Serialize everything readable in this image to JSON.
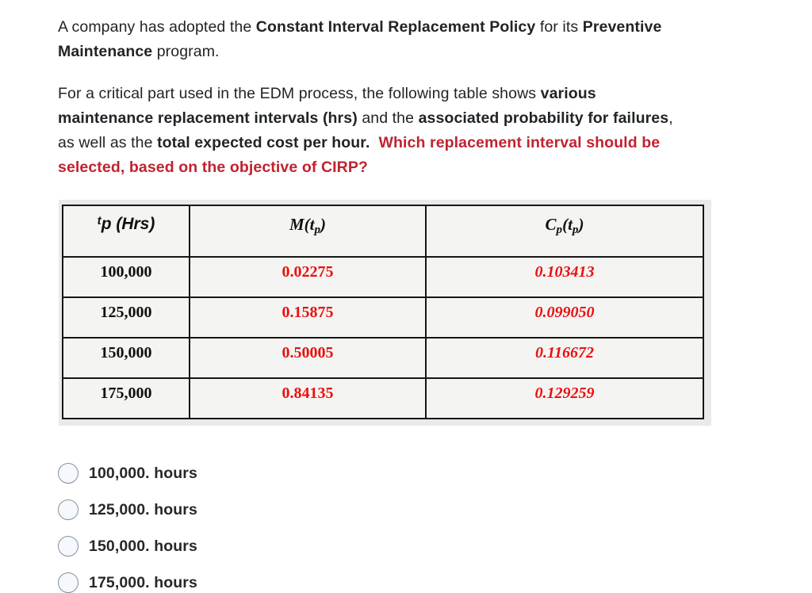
{
  "question": {
    "p1": {
      "l1": [
        {
          "t": "A company has adopted the "
        },
        {
          "t": "Constant Interval Replacement Policy"
        },
        {
          "t": " for its "
        },
        {
          "t": "Preventive"
        }
      ],
      "l2": [
        {
          "t": "Maintenance"
        },
        {
          "t": " program."
        }
      ]
    },
    "p2": {
      "l1": [
        {
          "t": "For a critical part used in the EDM process, the following table shows "
        },
        {
          "t": "various"
        }
      ],
      "l2": [
        {
          "t": "maintenance replacement intervals (hrs)"
        },
        {
          "t": " and the "
        },
        {
          "t": "associated probability for failures"
        },
        {
          "t": ","
        }
      ],
      "l3": [
        {
          "t": "as well as the "
        },
        {
          "t": "total expected cost per hour"
        },
        {
          "t": ".  "
        },
        {
          "t": "Which replacement interval should be"
        }
      ],
      "l4": [
        {
          "t": "selected, based on the objective of CIRP?"
        }
      ]
    }
  },
  "table": {
    "headers": {
      "col1": {
        "sup": "t",
        "base": "p",
        "rest": " (Hrs)"
      },
      "col2": {
        "pre": "M(t",
        "sub": "p",
        "post": ")"
      },
      "col3": {
        "pre": "C",
        "sub1": "p",
        "mid": "(t",
        "sub2": "p",
        "post": ")"
      }
    },
    "rows": [
      {
        "tp": "100,000",
        "m": "0.02275",
        "cp": "0.103413"
      },
      {
        "tp": "125,000",
        "m": "0.15875",
        "cp": "0.099050"
      },
      {
        "tp": "150,000",
        "m": "0.50005",
        "cp": "0.116672"
      },
      {
        "tp": "175,000",
        "m": "0.84135",
        "cp": "0.129259"
      }
    ]
  },
  "options": [
    {
      "label": "100,000. hours"
    },
    {
      "label": "125,000. hours"
    },
    {
      "label": "150,000. hours"
    },
    {
      "label": "175,000. hours"
    }
  ],
  "colors": {
    "question_red": "#c0232f",
    "table_value_red": "#eb0f0f",
    "table_cell_bg": "#f4f4f2",
    "table_image_bg": "#eaeae9",
    "body_text": "#212427"
  }
}
